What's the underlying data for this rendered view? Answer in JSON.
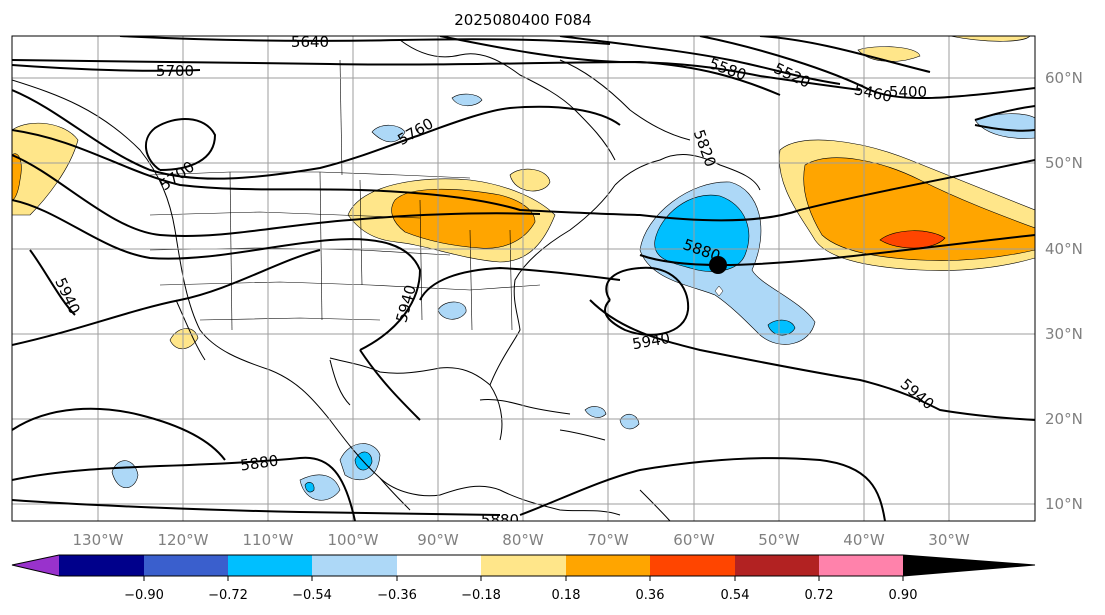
{
  "title": "2025080400 F084",
  "lat_labels": [
    "60°N",
    "50°N",
    "40°N",
    "30°N",
    "20°N",
    "10°N"
  ],
  "lon_labels": [
    "130°W",
    "120°W",
    "110°W",
    "100°W",
    "90°W",
    "80°W",
    "70°W",
    "60°W",
    "50°W",
    "40°W",
    "30°W"
  ],
  "contour_labels": [
    "5640",
    "5700",
    "5580",
    "5520",
    "5460",
    "5400",
    "5760",
    "5700",
    "5820",
    "5880",
    "5940",
    "5940",
    "5940",
    "5940",
    "5880",
    "5880"
  ],
  "colorbar": {
    "ticks": [
      "−0.90",
      "−0.72",
      "−0.54",
      "−0.36",
      "−0.18",
      "0.18",
      "0.36",
      "0.54",
      "0.72",
      "0.90"
    ],
    "colors": [
      "#9932CC",
      "#00008B",
      "#3A5FCD",
      "#00BFFF",
      "#ADD8F7",
      "#FFFFFF",
      "#FFE68A",
      "#FFA500",
      "#FF4500",
      "#B22222",
      "#FF82AB"
    ]
  },
  "colors": {
    "contour": "#000000",
    "grid": "#9e9e9e",
    "neg_light": "#ADD8F7",
    "neg_mid": "#00BFFF",
    "pos_light": "#FFE68A",
    "pos_mid": "#FFA500",
    "pos_strong": "#FF4500"
  }
}
